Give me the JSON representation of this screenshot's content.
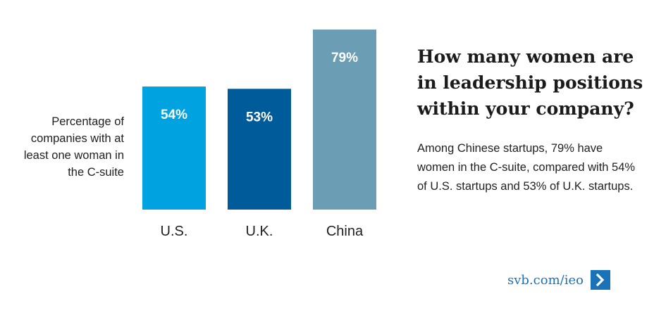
{
  "chart_data": {
    "type": "bar",
    "categories": [
      "U.S.",
      "U.K.",
      "China"
    ],
    "values": [
      54,
      53,
      79
    ],
    "data_labels": [
      "54%",
      "53%",
      "79%"
    ],
    "ylabel": "Percentage of companies with at least one woman in the C-suite",
    "ylim": [
      0,
      100
    ],
    "grid": false,
    "legend": "none",
    "colors": [
      "#00a3e0",
      "#005b9a",
      "#6b9db5"
    ],
    "label_colors": [
      "#ffffff",
      "#ffffff",
      "#ffffff"
    ]
  },
  "title": "How many women are in leadership positions within your company?",
  "body": "Among Chinese startups, 79% have women in the C-suite, compared with 54% of U.S. startups and 53% of U.K. startups.",
  "link": {
    "text": "svb.com/ieo",
    "icon": "chevron-right-icon"
  }
}
